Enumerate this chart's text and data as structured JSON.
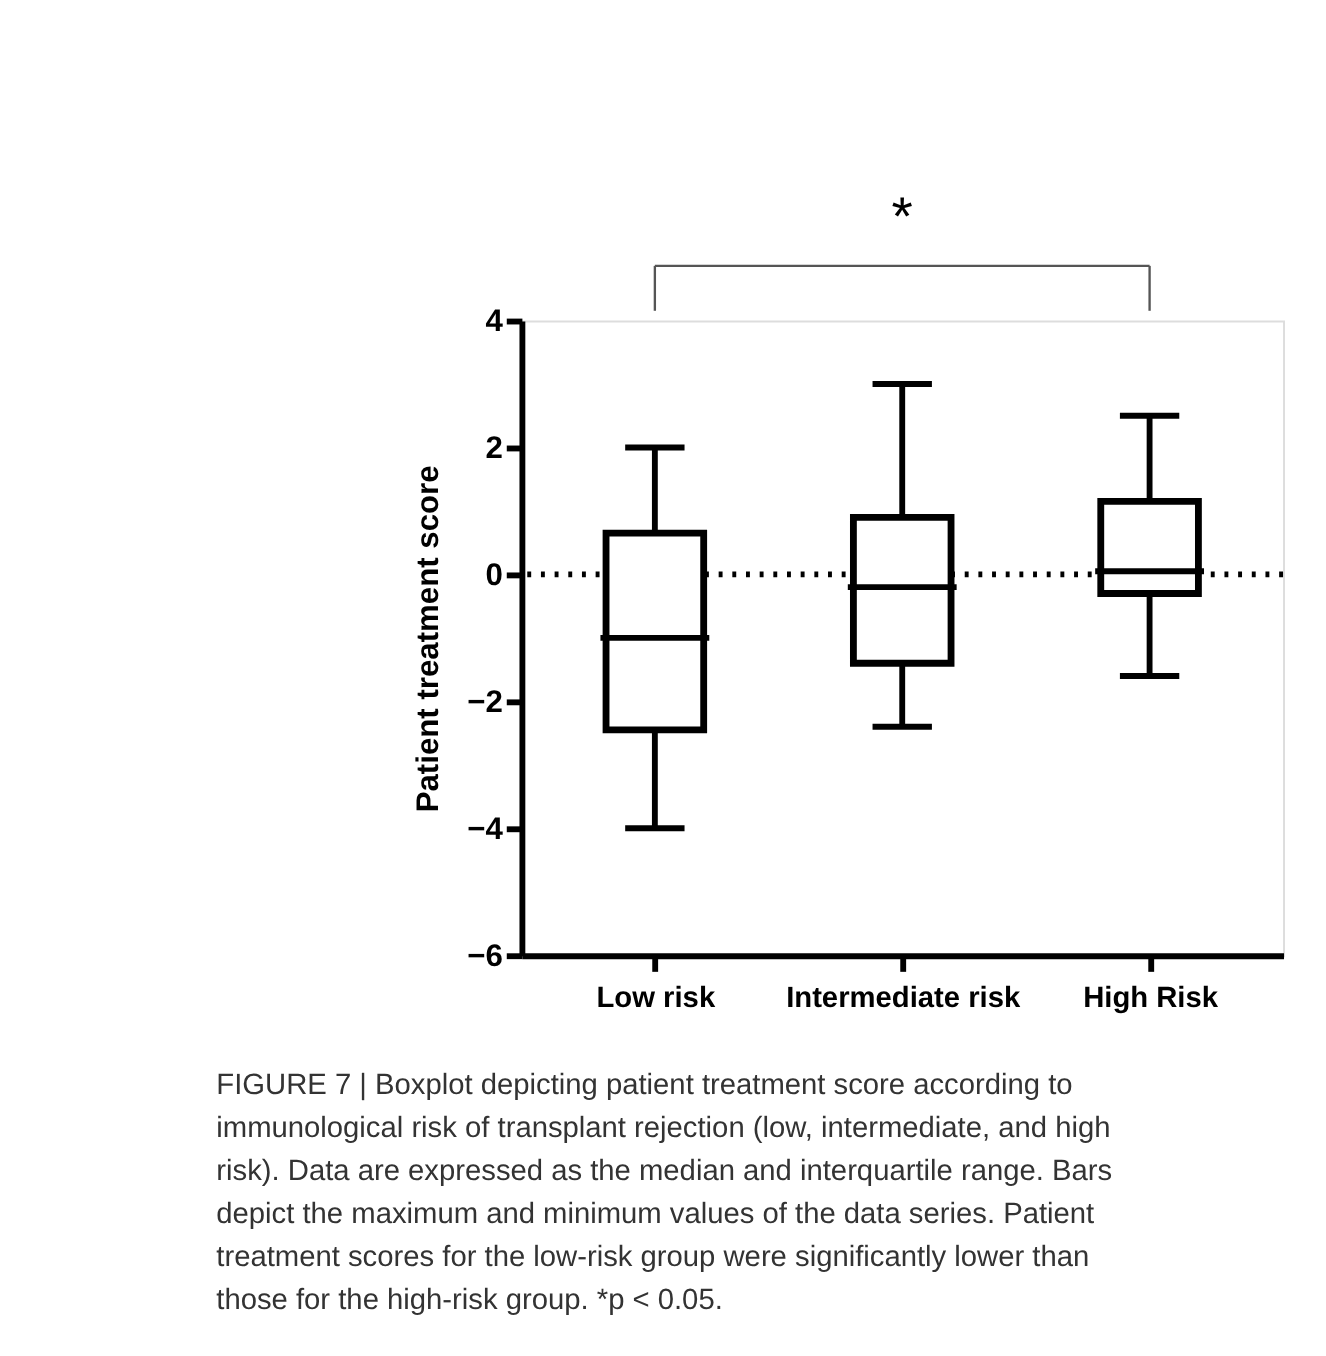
{
  "chart_data": {
    "type": "box",
    "ylabel": "Patient treatment score",
    "categories": [
      "Low risk",
      "Intermediate risk",
      "High Risk"
    ],
    "boxes": [
      {
        "low": -4,
        "q1": -2.45,
        "median": -1,
        "q3": 0.65,
        "high": 2
      },
      {
        "low": -2.4,
        "q1": -1.4,
        "median": -0.2,
        "q3": 0.9,
        "high": 3
      },
      {
        "low": -1.6,
        "q1": -0.3,
        "median": 0.05,
        "q3": 1.15,
        "high": 2.5
      }
    ],
    "color": "#000000",
    "ylim": [
      -6,
      4
    ],
    "yticks": [
      -6,
      -4,
      -2,
      0,
      2,
      4
    ],
    "grid": false,
    "ref_lines": [
      {
        "axis": "y",
        "value": 0,
        "line_style": "dotted"
      }
    ],
    "annotations": [
      "*",
      "FIGURE 7 | Boxplot depicting patient treatment score according to immunological risk of transplant rejection (low, intermediate, and high risk). Data are expressed as the median and interquartile range. Bars depict the maximum and minimum values of the data series. Patient treatment scores for the low-risk group were significantly lower than those for the high-risk group. *p < 0.05."
    ]
  }
}
